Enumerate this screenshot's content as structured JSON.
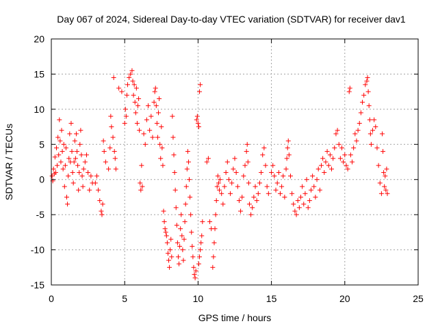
{
  "chart_data": {
    "type": "scatter",
    "title": "Day 067 of 2024, Sidereal Day-to-day VTEC variation (SDTVAR) for receiver dav1",
    "xlabel": "GPS time / hours",
    "ylabel": "SDTVAR / TECUs",
    "xlim": [
      0,
      25
    ],
    "ylim": [
      -15,
      20
    ],
    "xticks": [
      0,
      5,
      10,
      15,
      20,
      25
    ],
    "yticks": [
      -15,
      -10,
      -5,
      0,
      5,
      10,
      15,
      20
    ],
    "grid": true,
    "marker": "+",
    "marker_color": "#ff0000",
    "series": [
      {
        "name": "SDTVAR",
        "points": [
          [
            0.05,
            0.5
          ],
          [
            0.1,
            -0.2
          ],
          [
            0.15,
            1.5
          ],
          [
            0.2,
            0.8
          ],
          [
            0.25,
            3.2
          ],
          [
            0.3,
            1.0
          ],
          [
            0.35,
            4.5
          ],
          [
            0.4,
            2.0
          ],
          [
            0.45,
            6.0
          ],
          [
            0.5,
            3.5
          ],
          [
            0.55,
            8.5
          ],
          [
            0.6,
            5.5
          ],
          [
            0.65,
            2.5
          ],
          [
            0.7,
            7.0
          ],
          [
            0.75,
            4.0
          ],
          [
            0.8,
            1.5
          ],
          [
            0.85,
            5.0
          ],
          [
            0.9,
            -1.0
          ],
          [
            0.95,
            2.0
          ],
          [
            1.0,
            4.5
          ],
          [
            1.05,
            -2.5
          ],
          [
            1.1,
            -3.5
          ],
          [
            1.15,
            0.5
          ],
          [
            1.2,
            3.0
          ],
          [
            1.25,
            6.5
          ],
          [
            1.3,
            2.5
          ],
          [
            1.35,
            8.0
          ],
          [
            1.4,
            4.0
          ],
          [
            1.45,
            1.0
          ],
          [
            1.5,
            -0.5
          ],
          [
            1.55,
            2.5
          ],
          [
            1.6,
            5.5
          ],
          [
            1.65,
            3.0
          ],
          [
            1.7,
            6.5
          ],
          [
            1.75,
            4.0
          ],
          [
            1.8,
            2.0
          ],
          [
            1.85,
            -1.5
          ],
          [
            1.9,
            1.0
          ],
          [
            1.95,
            5.0
          ],
          [
            2.0,
            7.0
          ],
          [
            2.05,
            3.5
          ],
          [
            2.1,
            0.5
          ],
          [
            2.15,
            -1.0
          ],
          [
            2.2,
            1.5
          ],
          [
            2.3,
            2.5
          ],
          [
            2.4,
            3.5
          ],
          [
            2.5,
            1.0
          ],
          [
            2.6,
            -1.5
          ],
          [
            2.7,
            0.5
          ],
          [
            2.8,
            -0.5
          ],
          [
            3.0,
            -0.5
          ],
          [
            3.1,
            0.5
          ],
          [
            3.2,
            -1.5
          ],
          [
            3.3,
            -3.0
          ],
          [
            3.4,
            -4.5
          ],
          [
            3.45,
            -5.0
          ],
          [
            3.5,
            -3.5
          ],
          [
            3.55,
            5.5
          ],
          [
            3.6,
            4.0
          ],
          [
            3.7,
            2.5
          ],
          [
            3.9,
            1.5
          ],
          [
            4.0,
            4.5
          ],
          [
            4.05,
            9.0
          ],
          [
            4.1,
            7.5
          ],
          [
            4.2,
            6.0
          ],
          [
            4.25,
            14.5
          ],
          [
            4.3,
            4.0
          ],
          [
            4.35,
            3.0
          ],
          [
            4.4,
            1.5
          ],
          [
            4.6,
            13.0
          ],
          [
            4.8,
            12.5
          ],
          [
            5.0,
            8.0
          ],
          [
            5.05,
            10.0
          ],
          [
            5.1,
            9.0
          ],
          [
            5.15,
            12.0
          ],
          [
            5.2,
            13.5
          ],
          [
            5.3,
            14.5
          ],
          [
            5.4,
            15.0
          ],
          [
            5.5,
            15.5
          ],
          [
            5.55,
            14.0
          ],
          [
            5.6,
            12.0
          ],
          [
            5.65,
            13.5
          ],
          [
            5.7,
            11.0
          ],
          [
            5.75,
            9.5
          ],
          [
            5.8,
            13.0
          ],
          [
            5.85,
            8.0
          ],
          [
            5.9,
            10.5
          ],
          [
            5.95,
            11.5
          ],
          [
            6.0,
            7.0
          ],
          [
            6.05,
            -0.5
          ],
          [
            6.1,
            -1.5
          ],
          [
            6.15,
            2.0
          ],
          [
            6.2,
            -1.0
          ],
          [
            6.3,
            6.5
          ],
          [
            6.4,
            5.0
          ],
          [
            6.5,
            8.5
          ],
          [
            6.6,
            10.5
          ],
          [
            6.7,
            7.0
          ],
          [
            6.8,
            9.0
          ],
          [
            6.9,
            6.0
          ],
          [
            7.0,
            11.0
          ],
          [
            7.05,
            12.5
          ],
          [
            7.1,
            13.0
          ],
          [
            7.15,
            10.5
          ],
          [
            7.2,
            8.0
          ],
          [
            7.25,
            6.0
          ],
          [
            7.3,
            9.5
          ],
          [
            7.35,
            11.5
          ],
          [
            7.4,
            5.0
          ],
          [
            7.45,
            3.0
          ],
          [
            7.5,
            7.5
          ],
          [
            7.55,
            4.5
          ],
          [
            7.6,
            2.0
          ],
          [
            7.65,
            -4.5
          ],
          [
            7.7,
            -6.0
          ],
          [
            7.75,
            -7.0
          ],
          [
            7.8,
            -7.5
          ],
          [
            7.85,
            -8.0
          ],
          [
            7.9,
            -9.0
          ],
          [
            7.95,
            -10.5
          ],
          [
            8.0,
            -11.5
          ],
          [
            8.05,
            -12.5
          ],
          [
            8.1,
            -10.0
          ],
          [
            8.15,
            -8.5
          ],
          [
            8.2,
            -11.0
          ],
          [
            8.25,
            9.0
          ],
          [
            8.3,
            6.0
          ],
          [
            8.35,
            3.5
          ],
          [
            8.4,
            1.0
          ],
          [
            8.45,
            -1.5
          ],
          [
            8.5,
            -4.0
          ],
          [
            8.55,
            -6.5
          ],
          [
            8.6,
            -9.0
          ],
          [
            8.65,
            -11.0
          ],
          [
            8.7,
            -12.0
          ],
          [
            8.75,
            -9.5
          ],
          [
            8.8,
            -7.0
          ],
          [
            8.85,
            -5.0
          ],
          [
            8.9,
            -8.0
          ],
          [
            8.95,
            -10.0
          ],
          [
            9.0,
            -11.5
          ],
          [
            9.05,
            -8.5
          ],
          [
            9.1,
            -6.0
          ],
          [
            9.15,
            -3.5
          ],
          [
            9.2,
            -1.0
          ],
          [
            9.25,
            1.5
          ],
          [
            9.3,
            4.0
          ],
          [
            9.35,
            2.5
          ],
          [
            9.4,
            0.0
          ],
          [
            9.45,
            -2.5
          ],
          [
            9.5,
            -5.0
          ],
          [
            9.55,
            -7.5
          ],
          [
            9.6,
            -9.5
          ],
          [
            9.65,
            -11.0
          ],
          [
            9.7,
            -12.5
          ],
          [
            9.75,
            -13.5
          ],
          [
            9.8,
            -14.0
          ],
          [
            9.85,
            -13.0
          ],
          [
            9.9,
            8.5
          ],
          [
            9.95,
            9.0
          ],
          [
            10.0,
            8.0
          ],
          [
            10.05,
            -12.0
          ],
          [
            10.1,
            -11.0
          ],
          [
            10.15,
            -10.0
          ],
          [
            10.2,
            -9.0
          ],
          [
            10.25,
            -8.0
          ],
          [
            10.3,
            -6.0
          ],
          [
            10.1,
            12.5
          ],
          [
            10.15,
            13.5
          ],
          [
            10.05,
            7.5
          ],
          [
            10.6,
            2.5
          ],
          [
            10.7,
            3.0
          ],
          [
            10.8,
            -6.0
          ],
          [
            10.9,
            -7.0
          ],
          [
            11.0,
            -12.5
          ],
          [
            11.05,
            -11.0
          ],
          [
            11.1,
            -9.0
          ],
          [
            11.15,
            -7.0
          ],
          [
            11.2,
            -5.0
          ],
          [
            11.25,
            -3.0
          ],
          [
            11.3,
            -1.0
          ],
          [
            11.35,
            0.5
          ],
          [
            11.4,
            -0.5
          ],
          [
            11.45,
            -1.5
          ],
          [
            11.5,
            0.0
          ],
          [
            11.6,
            -2.0
          ],
          [
            11.7,
            -3.5
          ],
          [
            11.8,
            -1.0
          ],
          [
            11.9,
            1.0
          ],
          [
            12.0,
            2.5
          ],
          [
            12.1,
            0.0
          ],
          [
            12.2,
            -2.0
          ],
          [
            12.3,
            -0.5
          ],
          [
            12.4,
            1.5
          ],
          [
            12.5,
            3.0
          ],
          [
            12.6,
            1.0
          ],
          [
            12.7,
            -1.0
          ],
          [
            12.8,
            -3.0
          ],
          [
            12.9,
            -4.5
          ],
          [
            13.0,
            -2.5
          ],
          [
            13.1,
            0.5
          ],
          [
            13.2,
            2.0
          ],
          [
            13.3,
            4.0
          ],
          [
            13.35,
            5.0
          ],
          [
            13.4,
            2.5
          ],
          [
            13.45,
            -0.5
          ],
          [
            13.5,
            -3.5
          ],
          [
            13.6,
            -5.0
          ],
          [
            13.7,
            -4.0
          ],
          [
            13.8,
            -2.5
          ],
          [
            13.9,
            -1.0
          ],
          [
            14.0,
            -3.0
          ],
          [
            14.1,
            -2.0
          ],
          [
            14.2,
            -0.5
          ],
          [
            14.3,
            1.0
          ],
          [
            14.4,
            3.5
          ],
          [
            14.5,
            4.5
          ],
          [
            14.6,
            2.0
          ],
          [
            14.7,
            -1.0
          ],
          [
            14.8,
            -2.0
          ],
          [
            15.0,
            1.0
          ],
          [
            15.1,
            2.0
          ],
          [
            15.2,
            0.5
          ],
          [
            15.3,
            -1.5
          ],
          [
            15.4,
            -0.5
          ],
          [
            15.5,
            1.0
          ],
          [
            15.6,
            -2.0
          ],
          [
            15.7,
            -1.0
          ],
          [
            15.8,
            0.5
          ],
          [
            15.9,
            -2.5
          ],
          [
            16.0,
            1.5
          ],
          [
            16.05,
            3.0
          ],
          [
            16.1,
            4.5
          ],
          [
            16.15,
            5.5
          ],
          [
            16.2,
            3.5
          ],
          [
            16.3,
            0.5
          ],
          [
            16.4,
            -2.0
          ],
          [
            16.5,
            -3.5
          ],
          [
            16.6,
            -4.5
          ],
          [
            16.7,
            -5.0
          ],
          [
            16.8,
            -3.0
          ],
          [
            16.9,
            -4.0
          ],
          [
            17.0,
            -2.5
          ],
          [
            17.1,
            -1.0
          ],
          [
            17.2,
            -3.5
          ],
          [
            17.3,
            -2.0
          ],
          [
            17.4,
            0.0
          ],
          [
            17.5,
            -4.0
          ],
          [
            17.6,
            -3.0
          ],
          [
            17.7,
            -1.5
          ],
          [
            17.8,
            0.5
          ],
          [
            17.9,
            -1.0
          ],
          [
            18.0,
            -2.5
          ],
          [
            18.1,
            0.0
          ],
          [
            18.2,
            1.5
          ],
          [
            18.3,
            -1.5
          ],
          [
            18.4,
            2.0
          ],
          [
            18.5,
            3.0
          ],
          [
            18.6,
            1.0
          ],
          [
            18.7,
            2.5
          ],
          [
            18.8,
            4.0
          ],
          [
            18.9,
            2.0
          ],
          [
            19.0,
            3.5
          ],
          [
            19.1,
            1.5
          ],
          [
            19.2,
            3.0
          ],
          [
            19.3,
            4.5
          ],
          [
            19.4,
            6.5
          ],
          [
            19.5,
            7.0
          ],
          [
            19.6,
            5.0
          ],
          [
            19.7,
            3.0
          ],
          [
            19.8,
            4.5
          ],
          [
            19.9,
            2.5
          ],
          [
            20.0,
            3.5
          ],
          [
            20.1,
            2.0
          ],
          [
            20.2,
            1.5
          ],
          [
            20.3,
            12.5
          ],
          [
            20.35,
            13.0
          ],
          [
            20.4,
            3.5
          ],
          [
            20.5,
            2.5
          ],
          [
            20.6,
            4.5
          ],
          [
            20.7,
            6.5
          ],
          [
            20.8,
            5.5
          ],
          [
            20.9,
            7.0
          ],
          [
            21.0,
            8.0
          ],
          [
            21.1,
            9.5
          ],
          [
            21.2,
            11.0
          ],
          [
            21.3,
            12.0
          ],
          [
            21.4,
            13.5
          ],
          [
            21.5,
            14.0
          ],
          [
            21.55,
            14.5
          ],
          [
            21.6,
            12.5
          ],
          [
            21.65,
            10.5
          ],
          [
            21.7,
            8.5
          ],
          [
            21.75,
            6.5
          ],
          [
            21.8,
            5.0
          ],
          [
            21.9,
            7.0
          ],
          [
            22.0,
            8.5
          ],
          [
            22.1,
            7.5
          ],
          [
            22.2,
            4.5
          ],
          [
            22.3,
            2.0
          ],
          [
            22.4,
            -0.5
          ],
          [
            22.5,
            -2.0
          ],
          [
            22.55,
            6.5
          ],
          [
            22.6,
            4.0
          ],
          [
            22.65,
            1.0
          ],
          [
            22.7,
            -1.0
          ],
          [
            22.75,
            0.5
          ],
          [
            22.8,
            -1.5
          ],
          [
            22.85,
            1.5
          ],
          [
            22.9,
            -2.0
          ]
        ]
      }
    ]
  }
}
